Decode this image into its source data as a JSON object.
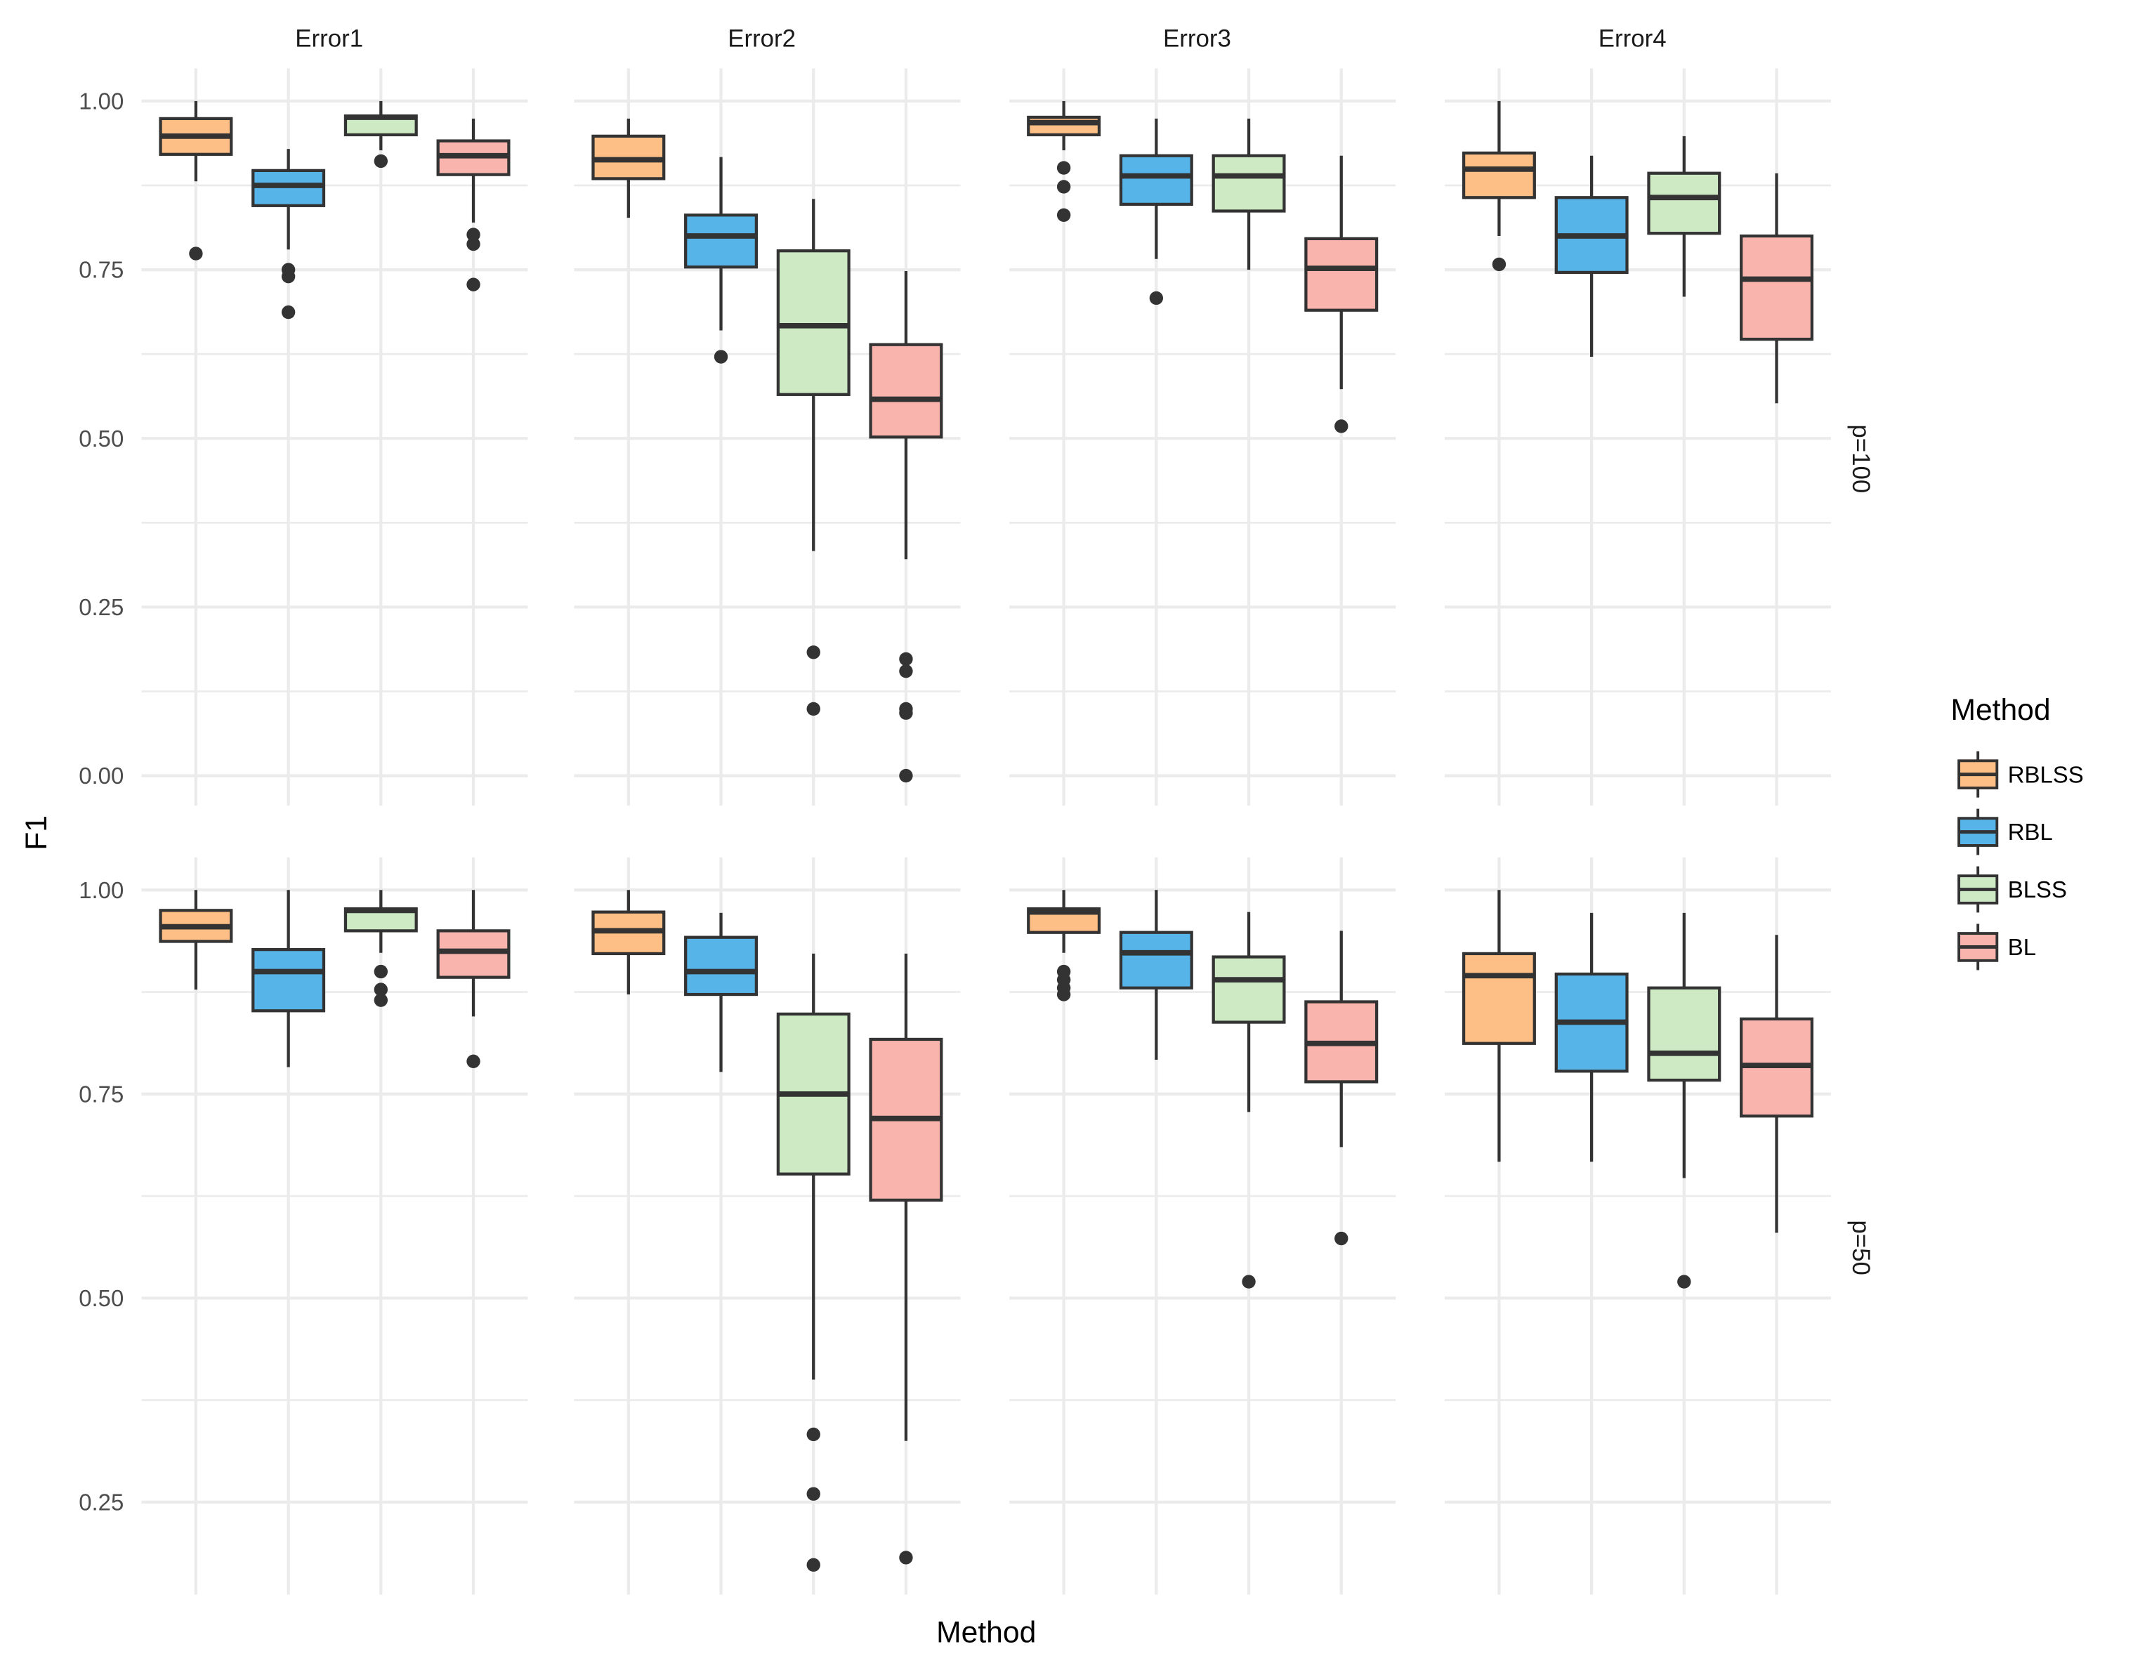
{
  "chart_data": {
    "type": "boxplot",
    "xlabel": "Method",
    "ylabel": "F1",
    "facet_columns": [
      "Error1",
      "Error2",
      "Error3",
      "Error4"
    ],
    "facet_rows": [
      {
        "label": "p=100",
        "ylim": [
          -0.05,
          1.04
        ],
        "yticks": [
          0,
          0.25,
          0.5,
          0.75,
          1.0
        ],
        "ytick_labels": [
          "0.00",
          "0.25",
          "0.50",
          "0.75",
          "1.00"
        ]
      },
      {
        "label": "p=50",
        "ylim": [
          0.15,
          1.04
        ],
        "yticks": [
          0.25,
          0.5,
          0.75,
          1.0
        ],
        "ytick_labels": [
          "0.25",
          "0.50",
          "0.75",
          "1.00"
        ]
      }
    ],
    "legend": {
      "title": "Method",
      "position": "right",
      "entries": [
        "RBLSS",
        "RBL",
        "BLSS",
        "BL"
      ]
    },
    "colors": {
      "RBLSS": "#FDBF85",
      "RBL": "#56B4E9",
      "BLSS": "#CDEAC5",
      "BL": "#F9B4AE"
    },
    "grid": true,
    "boxes": {
      "p=100": {
        "Error1": [
          {
            "method": "RBLSS",
            "lower": 0.881,
            "q1": 0.921,
            "median": 0.948,
            "q3": 0.974,
            "upper": 1.0,
            "outliers": [
              0.774
            ]
          },
          {
            "method": "RBL",
            "lower": 0.78,
            "q1": 0.845,
            "median": 0.875,
            "q3": 0.897,
            "upper": 0.929,
            "outliers": [
              0.75,
              0.74,
              0.687
            ]
          },
          {
            "method": "BLSS",
            "lower": 0.927,
            "q1": 0.95,
            "median": 0.976,
            "q3": 0.978,
            "upper": 1.0,
            "outliers": [
              0.911
            ]
          },
          {
            "method": "BL",
            "lower": 0.82,
            "q1": 0.891,
            "median": 0.919,
            "q3": 0.941,
            "upper": 0.974,
            "outliers": [
              0.802,
              0.788,
              0.728
            ]
          }
        ],
        "Error2": [
          {
            "method": "RBLSS",
            "lower": 0.827,
            "q1": 0.885,
            "median": 0.913,
            "q3": 0.948,
            "upper": 0.974,
            "outliers": []
          },
          {
            "method": "RBL",
            "lower": 0.66,
            "q1": 0.754,
            "median": 0.8,
            "q3": 0.831,
            "upper": 0.917,
            "outliers": [
              0.621
            ]
          },
          {
            "method": "BLSS",
            "lower": 0.333,
            "q1": 0.565,
            "median": 0.667,
            "q3": 0.778,
            "upper": 0.855,
            "outliers": [
              0.183,
              0.099
            ]
          },
          {
            "method": "BL",
            "lower": 0.321,
            "q1": 0.502,
            "median": 0.558,
            "q3": 0.639,
            "upper": 0.748,
            "outliers": [
              0.173,
              0.155,
              0.099,
              0.093,
              0.0
            ]
          }
        ],
        "Error3": [
          {
            "method": "RBLSS",
            "lower": 0.927,
            "q1": 0.95,
            "median": 0.968,
            "q3": 0.976,
            "upper": 1.0,
            "outliers": [
              0.901,
              0.873,
              0.831
            ]
          },
          {
            "method": "RBL",
            "lower": 0.766,
            "q1": 0.847,
            "median": 0.889,
            "q3": 0.919,
            "upper": 0.974,
            "outliers": [
              0.708
            ]
          },
          {
            "method": "BLSS",
            "lower": 0.75,
            "q1": 0.837,
            "median": 0.889,
            "q3": 0.919,
            "upper": 0.974,
            "outliers": []
          },
          {
            "method": "BL",
            "lower": 0.573,
            "q1": 0.69,
            "median": 0.752,
            "q3": 0.796,
            "upper": 0.919,
            "outliers": [
              0.518
            ]
          }
        ],
        "Error4": [
          {
            "method": "RBLSS",
            "lower": 0.8,
            "q1": 0.857,
            "median": 0.899,
            "q3": 0.923,
            "upper": 1.0,
            "outliers": [
              0.758
            ]
          },
          {
            "method": "RBL",
            "lower": 0.621,
            "q1": 0.746,
            "median": 0.8,
            "q3": 0.857,
            "upper": 0.919,
            "outliers": []
          },
          {
            "method": "BLSS",
            "lower": 0.71,
            "q1": 0.804,
            "median": 0.857,
            "q3": 0.893,
            "upper": 0.948,
            "outliers": []
          },
          {
            "method": "BL",
            "lower": 0.552,
            "q1": 0.647,
            "median": 0.736,
            "q3": 0.8,
            "upper": 0.893,
            "outliers": []
          }
        ]
      },
      "p=50": {
        "Error1": [
          {
            "method": "RBLSS",
            "lower": 0.878,
            "q1": 0.937,
            "median": 0.955,
            "q3": 0.975,
            "upper": 1.0,
            "outliers": []
          },
          {
            "method": "RBL",
            "lower": 0.783,
            "q1": 0.852,
            "median": 0.9,
            "q3": 0.927,
            "upper": 1.0,
            "outliers": []
          },
          {
            "method": "BLSS",
            "lower": 0.923,
            "q1": 0.95,
            "median": 0.975,
            "q3": 0.977,
            "upper": 1.0,
            "outliers": [
              0.9,
              0.878,
              0.865
            ]
          },
          {
            "method": "BL",
            "lower": 0.845,
            "q1": 0.893,
            "median": 0.925,
            "q3": 0.95,
            "upper": 1.0,
            "outliers": [
              0.79
            ]
          }
        ],
        "Error2": [
          {
            "method": "RBLSS",
            "lower": 0.872,
            "q1": 0.922,
            "median": 0.95,
            "q3": 0.973,
            "upper": 1.0,
            "outliers": []
          },
          {
            "method": "RBL",
            "lower": 0.777,
            "q1": 0.872,
            "median": 0.9,
            "q3": 0.942,
            "upper": 0.972,
            "outliers": []
          },
          {
            "method": "BLSS",
            "lower": 0.4,
            "q1": 0.652,
            "median": 0.75,
            "q3": 0.848,
            "upper": 0.922,
            "outliers": [
              0.333,
              0.26,
              0.173
            ]
          },
          {
            "method": "BL",
            "lower": 0.325,
            "q1": 0.62,
            "median": 0.72,
            "q3": 0.817,
            "upper": 0.922,
            "outliers": [
              0.182
            ]
          }
        ],
        "Error3": [
          {
            "method": "RBLSS",
            "lower": 0.923,
            "q1": 0.948,
            "median": 0.973,
            "q3": 0.977,
            "upper": 1.0,
            "outliers": [
              0.9,
              0.89,
              0.88,
              0.872
            ]
          },
          {
            "method": "RBL",
            "lower": 0.792,
            "q1": 0.88,
            "median": 0.923,
            "q3": 0.948,
            "upper": 1.0,
            "outliers": []
          },
          {
            "method": "BLSS",
            "lower": 0.728,
            "q1": 0.838,
            "median": 0.89,
            "q3": 0.918,
            "upper": 0.973,
            "outliers": [
              0.52
            ]
          },
          {
            "method": "BL",
            "lower": 0.685,
            "q1": 0.765,
            "median": 0.812,
            "q3": 0.863,
            "upper": 0.95,
            "outliers": [
              0.573
            ]
          }
        ],
        "Error4": [
          {
            "method": "RBLSS",
            "lower": 0.667,
            "q1": 0.812,
            "median": 0.895,
            "q3": 0.922,
            "upper": 1.0,
            "outliers": []
          },
          {
            "method": "RBL",
            "lower": 0.667,
            "q1": 0.778,
            "median": 0.838,
            "q3": 0.897,
            "upper": 0.972,
            "outliers": []
          },
          {
            "method": "BLSS",
            "lower": 0.647,
            "q1": 0.767,
            "median": 0.8,
            "q3": 0.88,
            "upper": 0.972,
            "outliers": [
              0.52
            ]
          },
          {
            "method": "BL",
            "lower": 0.58,
            "q1": 0.723,
            "median": 0.785,
            "q3": 0.842,
            "upper": 0.945,
            "outliers": []
          }
        ]
      }
    }
  }
}
